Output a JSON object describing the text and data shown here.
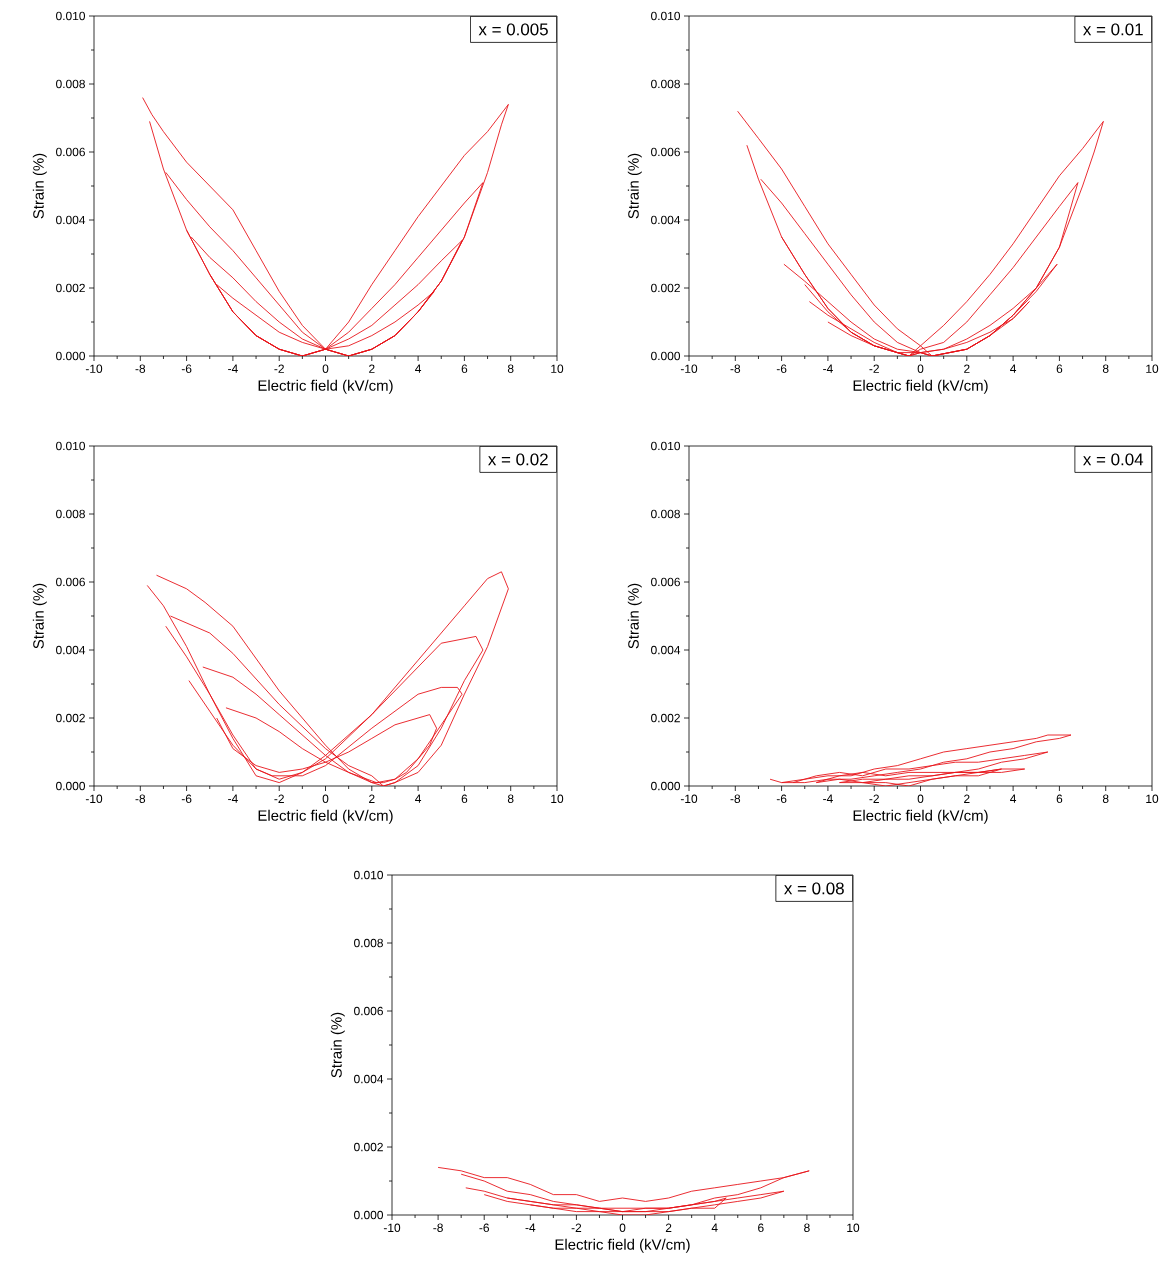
{
  "chart_data": [
    {
      "type": "line",
      "annotations": [
        "x = 0.005"
      ],
      "xlabel": "Electric field (kV/cm)",
      "ylabel": "Strain (%)",
      "xlim": [
        -10,
        10
      ],
      "ylim": [
        0,
        0.01
      ],
      "xticks": [
        -10,
        -8,
        -6,
        -4,
        -2,
        0,
        2,
        4,
        6,
        8,
        10
      ],
      "yticks": [
        {
          "value": 0,
          "label": "0.000"
        },
        {
          "value": 0.002,
          "label": "0.002"
        },
        {
          "value": 0.004,
          "label": "0.004"
        },
        {
          "value": 0.006,
          "label": "0.006"
        },
        {
          "value": 0.008,
          "label": "0.008"
        },
        {
          "value": 0.01,
          "label": "0.010"
        }
      ],
      "series": [
        {
          "color": "#e8151b",
          "x": [
            -7.9,
            -7.5,
            -7,
            -6,
            -5,
            -4,
            -3,
            -2,
            -1,
            0,
            1,
            2,
            3,
            4,
            5,
            6,
            7,
            7.6,
            7.9,
            7,
            6,
            5,
            4,
            3,
            2,
            1,
            0,
            -1,
            -2,
            -3,
            -4,
            -5,
            -6,
            -7,
            -7.6
          ],
          "values": [
            0.0076,
            0.0071,
            0.0066,
            0.0057,
            0.005,
            0.0043,
            0.0031,
            0.0019,
            0.0009,
            0.0002,
            0,
            0.0002,
            0.0006,
            0.0013,
            0.0022,
            0.0035,
            0.0054,
            0.0068,
            0.0074,
            0.0066,
            0.0059,
            0.005,
            0.0041,
            0.0031,
            0.0021,
            0.001,
            0.0002,
            0,
            0.0002,
            0.0006,
            0.0013,
            0.0024,
            0.0037,
            0.0055,
            0.0069
          ]
        },
        {
          "color": "#e8151b",
          "x": [
            -6.9,
            -6,
            -5,
            -4,
            -3,
            -2,
            -1,
            0,
            1,
            2,
            3,
            4,
            5,
            6,
            6.8,
            6,
            5,
            4,
            3,
            2,
            1,
            0,
            -1,
            -2,
            -3,
            -4,
            -5,
            -6
          ],
          "values": [
            0.0054,
            0.0046,
            0.0038,
            0.0031,
            0.0023,
            0.0015,
            0.0007,
            0.0002,
            0,
            0.0002,
            0.0006,
            0.0013,
            0.0022,
            0.0035,
            0.0051,
            0.0045,
            0.0037,
            0.0029,
            0.0021,
            0.0014,
            0.0007,
            0.0002,
            0,
            0.0002,
            0.0006,
            0.0013,
            0.0024,
            0.0037
          ]
        },
        {
          "color": "#e8151b",
          "x": [
            -5.8,
            -5,
            -4,
            -3,
            -2,
            -1,
            0,
            1,
            2,
            3,
            4,
            5,
            5.9,
            5,
            4,
            3,
            2,
            1,
            0,
            -1,
            -2,
            -3,
            -4,
            -5
          ],
          "values": [
            0.0035,
            0.0029,
            0.0023,
            0.0016,
            0.001,
            0.0005,
            0.0002,
            0,
            0.0002,
            0.0006,
            0.0013,
            0.0022,
            0.0034,
            0.0028,
            0.0021,
            0.0015,
            0.0009,
            0.0005,
            0.0002,
            0,
            0.0002,
            0.0006,
            0.0013,
            0.0024
          ]
        },
        {
          "color": "#e8151b",
          "x": [
            -4.7,
            -4,
            -3,
            -2,
            -1,
            0,
            1,
            2,
            3,
            4,
            4.7,
            4,
            3,
            2,
            1,
            0,
            -1,
            -2,
            -3,
            -4
          ],
          "values": [
            0.0021,
            0.0017,
            0.0012,
            0.0007,
            0.0004,
            0.0002,
            0,
            0.0002,
            0.0006,
            0.0013,
            0.0019,
            0.0015,
            0.001,
            0.0006,
            0.0003,
            0.0002,
            0,
            0.0002,
            0.0006,
            0.0013
          ]
        }
      ]
    },
    {
      "type": "line",
      "annotations": [
        "x = 0.01"
      ],
      "xlabel": "Electric field (kV/cm)",
      "ylabel": "Strain (%)",
      "xlim": [
        -10,
        10
      ],
      "ylim": [
        0,
        0.01
      ],
      "xticks": [
        -10,
        -8,
        -6,
        -4,
        -2,
        0,
        2,
        4,
        6,
        8,
        10
      ],
      "yticks": [
        {
          "value": 0,
          "label": "0.000"
        },
        {
          "value": 0.002,
          "label": "0.002"
        },
        {
          "value": 0.004,
          "label": "0.004"
        },
        {
          "value": 0.006,
          "label": "0.006"
        },
        {
          "value": 0.008,
          "label": "0.008"
        },
        {
          "value": 0.01,
          "label": "0.010"
        }
      ],
      "series": [
        {
          "color": "#e8151b",
          "x": [
            -7.9,
            -7,
            -6,
            -5,
            -4,
            -3,
            -2,
            -1,
            0,
            0.5,
            2,
            3,
            4,
            5,
            6,
            7,
            7.5,
            7.9,
            7,
            6,
            5,
            4,
            3,
            2,
            1,
            0,
            -0.5,
            -2,
            -3,
            -4,
            -5,
            -6,
            -7,
            -7.5
          ],
          "values": [
            0.0072,
            0.0064,
            0.0055,
            0.0044,
            0.0033,
            0.0024,
            0.0015,
            0.0008,
            0.0003,
            0,
            0.0002,
            0.0006,
            0.0012,
            0.002,
            0.0032,
            0.005,
            0.006,
            0.0069,
            0.0061,
            0.0053,
            0.0043,
            0.0033,
            0.0024,
            0.0016,
            0.0009,
            0.0003,
            0,
            0.0003,
            0.0007,
            0.0014,
            0.0024,
            0.0035,
            0.0052,
            0.0062
          ]
        },
        {
          "color": "#e8151b",
          "x": [
            -6.9,
            -6,
            -5,
            -4,
            -3,
            -2,
            -1,
            0,
            0.5,
            2,
            3,
            4,
            5,
            6,
            6.8,
            6,
            5,
            4,
            3,
            2,
            1,
            0,
            -0.5,
            -2,
            -3,
            -4,
            -5,
            -6
          ],
          "values": [
            0.0052,
            0.0045,
            0.0036,
            0.0027,
            0.0018,
            0.001,
            0.0004,
            0.0001,
            0,
            0.0002,
            0.0006,
            0.0012,
            0.002,
            0.0032,
            0.0051,
            0.0044,
            0.0035,
            0.0026,
            0.0018,
            0.001,
            0.0004,
            0.0002,
            0,
            0.0003,
            0.0007,
            0.0014,
            0.0024,
            0.0035
          ]
        },
        {
          "color": "#e8151b",
          "x": [
            -5.9,
            -5,
            -4,
            -3,
            -2,
            -1,
            0,
            0.5,
            2,
            3,
            4,
            5,
            5.9,
            5,
            4,
            3,
            2,
            1,
            0,
            -0.5,
            -2,
            -3,
            -4,
            -5
          ],
          "values": [
            0.0027,
            0.0022,
            0.0016,
            0.001,
            0.0005,
            0.0002,
            0.0001,
            0,
            0.0002,
            0.0006,
            0.0012,
            0.0019,
            0.0027,
            0.002,
            0.0014,
            0.0009,
            0.0005,
            0.0002,
            0.0001,
            0,
            0.0003,
            0.0007,
            0.0013,
            0.0021
          ]
        },
        {
          "color": "#e8151b",
          "x": [
            -4.8,
            -4,
            -3,
            -2,
            -1,
            0,
            0.5,
            2,
            3,
            4,
            4.7,
            4,
            3,
            2,
            1,
            0,
            -0.5,
            -2,
            -3,
            -4
          ],
          "values": [
            0.0016,
            0.0012,
            0.0008,
            0.0004,
            0.0001,
            0.0001,
            0,
            0.0002,
            0.0006,
            0.0011,
            0.0016,
            0.0011,
            0.0007,
            0.0004,
            0.0002,
            0.0001,
            0,
            0.0003,
            0.0006,
            0.001
          ]
        }
      ]
    },
    {
      "type": "line",
      "annotations": [
        "x = 0.02"
      ],
      "xlabel": "Electric field (kV/cm)",
      "ylabel": "Strain (%)",
      "xlim": [
        -10,
        10
      ],
      "ylim": [
        0,
        0.01
      ],
      "xticks": [
        -10,
        -8,
        -6,
        -4,
        -2,
        0,
        2,
        4,
        6,
        8,
        10
      ],
      "yticks": [
        {
          "value": 0,
          "label": "0.000"
        },
        {
          "value": 0.002,
          "label": "0.002"
        },
        {
          "value": 0.004,
          "label": "0.004"
        },
        {
          "value": 0.006,
          "label": "0.006"
        },
        {
          "value": 0.008,
          "label": "0.008"
        },
        {
          "value": 0.01,
          "label": "0.010"
        }
      ],
      "series": [
        {
          "color": "#e8151b",
          "x": [
            -7.3,
            -6,
            -5.2,
            -4,
            -2,
            -1,
            0,
            1,
            2,
            2.5,
            3,
            4,
            5,
            6,
            7,
            7.9,
            7.6,
            7,
            6,
            4,
            2,
            0,
            -1,
            -2,
            -3,
            -4,
            -5,
            -6,
            -7,
            -7.7
          ],
          "values": [
            0.0062,
            0.0058,
            0.0054,
            0.0047,
            0.0028,
            0.002,
            0.0012,
            0.0005,
            0.0001,
            0,
            0.0001,
            0.0004,
            0.0012,
            0.0027,
            0.0041,
            0.0058,
            0.0063,
            0.0061,
            0.0053,
            0.0037,
            0.0021,
            0.0009,
            0.0004,
            0.0001,
            0.0003,
            0.0014,
            0.0027,
            0.0041,
            0.0053,
            0.0059
          ]
        },
        {
          "color": "#e8151b",
          "x": [
            -6.7,
            -5,
            -4,
            -2,
            0,
            1,
            2,
            2.5,
            3,
            4,
            5,
            6,
            6.8,
            6.5,
            5,
            4,
            2,
            0,
            -1,
            -2,
            -3,
            -4,
            -5,
            -6,
            -6.9
          ],
          "values": [
            0.005,
            0.0045,
            0.0039,
            0.0024,
            0.0011,
            0.0006,
            0.0003,
            0,
            0.0001,
            0.0006,
            0.0017,
            0.0031,
            0.004,
            0.0044,
            0.0042,
            0.0035,
            0.0021,
            0.0008,
            0.0004,
            0.0002,
            0.0005,
            0.0015,
            0.0027,
            0.0038,
            0.0047
          ]
        },
        {
          "color": "#e8151b",
          "x": [
            -5.3,
            -4,
            -3,
            -2,
            0,
            1,
            2,
            2.5,
            3,
            4,
            5,
            5.9,
            5.7,
            5,
            4,
            2,
            0,
            -1,
            -2.3,
            -3,
            -4,
            -5,
            -5.9
          ],
          "values": [
            0.0035,
            0.0032,
            0.0027,
            0.0021,
            0.0009,
            0.0004,
            0.0001,
            0.0001,
            0.0002,
            0.0008,
            0.0018,
            0.0027,
            0.0029,
            0.0029,
            0.0027,
            0.0017,
            0.0006,
            0.0003,
            0.0003,
            0.0005,
            0.0012,
            0.0022,
            0.0031
          ]
        },
        {
          "color": "#e8151b",
          "x": [
            -4.3,
            -3,
            -2,
            -1,
            0,
            1,
            2.2,
            3,
            3.5,
            4.5,
            4.8,
            4.5,
            3,
            2,
            1,
            0,
            -1,
            -2,
            -3,
            -4,
            -4.7
          ],
          "values": [
            0.0023,
            0.002,
            0.0016,
            0.0011,
            0.0007,
            0.0004,
            0.0001,
            0.0002,
            0.0004,
            0.0012,
            0.0017,
            0.0021,
            0.0018,
            0.0014,
            0.001,
            0.0007,
            0.0005,
            0.0004,
            0.0006,
            0.0011,
            0.002
          ]
        }
      ]
    },
    {
      "type": "line",
      "annotations": [
        "x = 0.04"
      ],
      "xlabel": "Electric field (kV/cm)",
      "ylabel": "Strain (%)",
      "xlim": [
        -10,
        10
      ],
      "ylim": [
        0,
        0.01
      ],
      "xticks": [
        -10,
        -8,
        -6,
        -4,
        -2,
        0,
        2,
        4,
        6,
        8,
        10
      ],
      "yticks": [
        {
          "value": 0,
          "label": "0.000"
        },
        {
          "value": 0.002,
          "label": "0.002"
        },
        {
          "value": 0.004,
          "label": "0.004"
        },
        {
          "value": 0.006,
          "label": "0.006"
        },
        {
          "value": 0.008,
          "label": "0.008"
        },
        {
          "value": 0.01,
          "label": "0.010"
        }
      ],
      "series": [
        {
          "color": "#e8151b",
          "x": [
            -6.5,
            -6,
            -5,
            -4,
            -3,
            -2,
            -1,
            0,
            1,
            2,
            3,
            4,
            5,
            5.5,
            6.5,
            6,
            5,
            4,
            3,
            2,
            1,
            0,
            -1,
            -2,
            -3,
            -4,
            -5,
            -6
          ],
          "values": [
            0.0002,
            0.0001,
            0.0002,
            0.0003,
            0.0003,
            0.0005,
            0.0006,
            0.0008,
            0.001,
            0.0011,
            0.0012,
            0.0013,
            0.0014,
            0.0015,
            0.0015,
            0.0014,
            0.0013,
            0.0011,
            0.001,
            0.0008,
            0.0007,
            0.0005,
            0.0004,
            0.0003,
            0.0002,
            0.0002,
            0.0001,
            0.0001
          ]
        },
        {
          "color": "#e8151b",
          "x": [
            -5.5,
            -4.5,
            -3.5,
            -2.5,
            -1.5,
            -0.5,
            0.5,
            1.5,
            2.5,
            3.5,
            4.5,
            5.5,
            4.5,
            3.5,
            2.5,
            1.5,
            0.5,
            -0.5,
            -1.5,
            -2.5,
            -3.5,
            -4.5
          ],
          "values": [
            0.0001,
            0.0003,
            0.0004,
            0.0003,
            0.0005,
            0.0005,
            0.0006,
            0.0007,
            0.0007,
            0.0008,
            0.0009,
            0.001,
            0.0008,
            0.0007,
            0.0005,
            0.0004,
            0.0003,
            0.0002,
            0.0002,
            0.0001,
            0.0002,
            0.0001
          ]
        },
        {
          "color": "#e8151b",
          "x": [
            -4.5,
            -3.5,
            -2.5,
            -1.5,
            -0.5,
            0.3,
            1.3,
            2.5,
            3.5,
            2.5,
            1.5,
            0.5,
            -0.5,
            -1.5,
            -2.5,
            -3.5
          ],
          "values": [
            0.0001,
            0.0003,
            0.0004,
            0.0003,
            0.0004,
            0.0004,
            0.0004,
            0.0004,
            0.0005,
            0.0003,
            0.0003,
            0.0002,
            0.0001,
            0,
            0.0001,
            0.0001
          ]
        },
        {
          "color": "#e8151b",
          "x": [
            -3.5,
            -2.5,
            -1.5,
            -0.5,
            0.5,
            1.5,
            2.5,
            3.5,
            4.5,
            3.5,
            2.5,
            1.5,
            0.5,
            -0.5,
            -1.5,
            -2.5
          ],
          "values": [
            0.0001,
            0.0002,
            0.0002,
            0.0003,
            0.0003,
            0.0004,
            0.0004,
            0.0005,
            0.0005,
            0.0004,
            0.0004,
            0.0003,
            0.0002,
            0,
            0.0001,
            0.0001
          ]
        }
      ]
    },
    {
      "type": "line",
      "annotations": [
        "x = 0.08"
      ],
      "xlabel": "Electric field (kV/cm)",
      "ylabel": "Strain (%)",
      "xlim": [
        -10,
        10
      ],
      "ylim": [
        0,
        0.01
      ],
      "xticks": [
        -10,
        -8,
        -6,
        -4,
        -2,
        0,
        2,
        4,
        6,
        8,
        10
      ],
      "yticks": [
        {
          "value": 0,
          "label": "0.000"
        },
        {
          "value": 0.002,
          "label": "0.002"
        },
        {
          "value": 0.004,
          "label": "0.004"
        },
        {
          "value": 0.006,
          "label": "0.006"
        },
        {
          "value": 0.008,
          "label": "0.008"
        },
        {
          "value": 0.01,
          "label": "0.010"
        }
      ],
      "series": [
        {
          "color": "#e8151b",
          "x": [
            -8,
            -7,
            -6,
            -5,
            -4,
            -3,
            -2,
            -1,
            0,
            1,
            2,
            3,
            4,
            5,
            6,
            7,
            8.1,
            7,
            6,
            5,
            4,
            3,
            2,
            1,
            0,
            -1,
            -2,
            -3,
            -4,
            -5,
            -6,
            -7
          ],
          "values": [
            0.0014,
            0.0013,
            0.0011,
            0.0011,
            0.0009,
            0.0006,
            0.0006,
            0.0004,
            0.0005,
            0.0004,
            0.0005,
            0.0007,
            0.0008,
            0.0009,
            0.001,
            0.0011,
            0.0013,
            0.0011,
            0.0008,
            0.0006,
            0.0005,
            0.0003,
            0.0002,
            0.0001,
            0.0001,
            0.0002,
            0.0003,
            0.0004,
            0.0006,
            0.0007,
            0.001,
            0.0012
          ]
        },
        {
          "color": "#e8151b",
          "x": [
            -6.8,
            -6,
            -5,
            -4,
            -3,
            -2,
            -1,
            0,
            1,
            2,
            3,
            4,
            5,
            6,
            7,
            6,
            5,
            4,
            3,
            2,
            1,
            0,
            -1,
            -2,
            -3,
            -4,
            -5,
            -6
          ],
          "values": [
            0.0008,
            0.0007,
            0.0005,
            0.0004,
            0.0003,
            0.0003,
            0.0002,
            0.0002,
            0.0002,
            0.0002,
            0.0003,
            0.0004,
            0.0005,
            0.0006,
            0.0007,
            0.0005,
            0.0004,
            0.0003,
            0.0002,
            0.0001,
            0.0001,
            0.0001,
            0.0001,
            0.0002,
            0.0002,
            0.0003,
            0.0004,
            0.0006
          ]
        },
        {
          "color": "#e8151b",
          "x": [
            -5,
            -4,
            -3,
            -2,
            -1,
            0,
            1,
            2,
            3,
            4,
            4.5,
            4,
            3,
            2,
            1,
            0,
            -1,
            -2,
            -3,
            -4
          ],
          "values": [
            0.0005,
            0.0004,
            0.0003,
            0.0002,
            0.0002,
            0.0001,
            0.0002,
            0.0002,
            0.0003,
            0.0004,
            0.0005,
            0.0002,
            0.0002,
            0.0001,
            0,
            0,
            0.0001,
            0.0001,
            0.0002,
            0.0003
          ]
        }
      ]
    }
  ]
}
